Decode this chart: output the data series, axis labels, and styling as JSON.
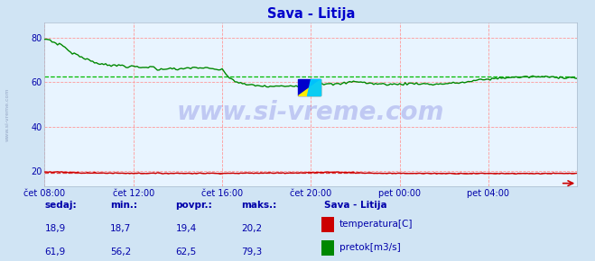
{
  "title": "Sava - Litija",
  "bg_color": "#d0e4f4",
  "plot_bg_color": "#e8f4ff",
  "grid_color": "#ff9999",
  "title_color": "#0000cc",
  "axis_label_color": "#0000aa",
  "text_color": "#0000aa",
  "ylim": [
    13,
    87
  ],
  "yticks": [
    20,
    40,
    60,
    80
  ],
  "xlabel_ticks": [
    "čet 08:00",
    "čet 12:00",
    "čet 16:00",
    "čet 20:00",
    "pet 00:00",
    "pet 04:00"
  ],
  "xtick_positions": [
    0,
    48,
    96,
    144,
    192,
    240
  ],
  "total_points": 289,
  "temp_color": "#cc0000",
  "flow_color": "#008800",
  "temp_avg_color": "#dd4444",
  "flow_avg_color": "#00bb00",
  "temp_avg": 19.4,
  "flow_avg": 62.5,
  "legend_title": "Sava - Litija",
  "legend_entries": [
    "temperatura[C]",
    "pretok[m3/s]"
  ],
  "legend_colors": [
    "#cc0000",
    "#008800"
  ],
  "stats_headers": [
    "sedaj:",
    "min.:",
    "povpr.:",
    "maks.:"
  ],
  "stats_temp": [
    "18,9",
    "18,7",
    "19,4",
    "20,2"
  ],
  "stats_flow": [
    "61,9",
    "56,2",
    "62,5",
    "79,3"
  ],
  "watermark": "www.si-vreme.com",
  "watermark_color": "#3333cc",
  "side_text": "www.si-vreme.com"
}
